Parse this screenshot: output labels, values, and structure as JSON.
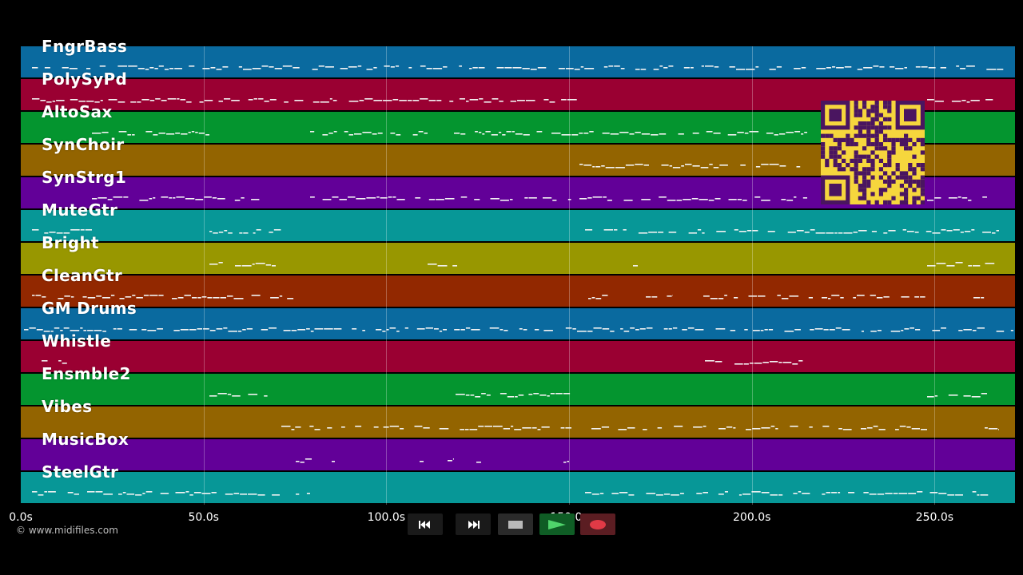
{
  "tracks": [
    {
      "name": "FngrBass",
      "color": "#0a6a9f"
    },
    {
      "name": "PolySyPd",
      "color": "#9a0032"
    },
    {
      "name": "AltoSax",
      "color": "#04952f"
    },
    {
      "name": "SynChoir",
      "color": "#936400"
    },
    {
      "name": "SynStrg1",
      "color": "#620098"
    },
    {
      "name": "MuteGtr",
      "color": "#079797"
    },
    {
      "name": "Bright",
      "color": "#989700"
    },
    {
      "name": "CleanGtr",
      "color": "#922800"
    },
    {
      "name": "GM Drums",
      "color": "#0a6a9f"
    },
    {
      "name": "Whistle",
      "color": "#9a0032"
    },
    {
      "name": "Ensmble2",
      "color": "#04952f"
    },
    {
      "name": "Vibes",
      "color": "#936400"
    },
    {
      "name": "MusicBox",
      "color": "#620098"
    },
    {
      "name": "SteelGtr",
      "color": "#079797"
    }
  ],
  "timeline": {
    "ticks": [
      "0.0s",
      "50.0s",
      "100.0s",
      "150.0s",
      "200.0s",
      "250.0s"
    ],
    "tick_seconds": [
      0,
      50,
      100,
      150,
      200,
      250
    ],
    "max_seconds": 272
  },
  "copyright": "© www.midifiles.com",
  "transport": {
    "rewind": "rewind-icon",
    "fast_forward": "fast-forward-icon",
    "stop": "stop-icon",
    "play": "play-icon",
    "record": "record-icon"
  },
  "qr_icon": "qr-code-icon"
}
